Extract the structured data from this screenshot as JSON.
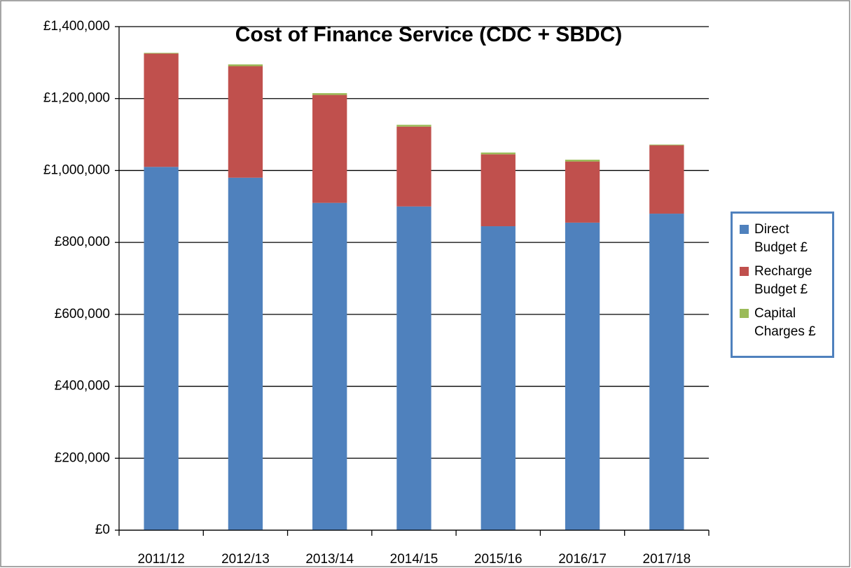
{
  "chart_data": {
    "type": "stacked_bar",
    "title": "Cost of Finance Service (CDC + SBDC)",
    "categories": [
      "2011/12",
      "2012/13",
      "2013/14",
      "2014/15",
      "2015/16",
      "2016/17",
      "2017/18"
    ],
    "series": [
      {
        "name": "Direct Budget £",
        "color": "#4f81bd",
        "values": [
          1010000,
          980000,
          910000,
          900000,
          845000,
          855000,
          880000
        ]
      },
      {
        "name": "Recharge Budget £",
        "color": "#c0504d",
        "values": [
          315000,
          310000,
          300000,
          222000,
          200000,
          170000,
          190000
        ]
      },
      {
        "name": "Capital Charges £",
        "color": "#9bbb59",
        "values": [
          2000,
          5000,
          5000,
          5000,
          5000,
          5000,
          2000
        ]
      }
    ],
    "ylim": [
      0,
      1400000
    ],
    "yticks": [
      {
        "value": 0,
        "label": "£0"
      },
      {
        "value": 200000,
        "label": "£200,000"
      },
      {
        "value": 400000,
        "label": "£400,000"
      },
      {
        "value": 600000,
        "label": "£600,000"
      },
      {
        "value": 800000,
        "label": "£800,000"
      },
      {
        "value": 1000000,
        "label": "£1,000,000"
      },
      {
        "value": 1200000,
        "label": "£1,200,000"
      },
      {
        "value": 1400000,
        "label": "£1,400,000"
      }
    ],
    "grid": true,
    "legend": "right"
  }
}
